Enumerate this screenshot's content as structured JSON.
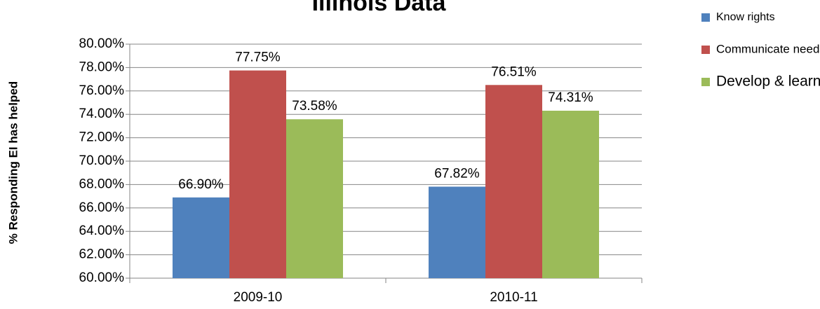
{
  "chart_data": {
    "type": "bar",
    "title": "Illinois Data",
    "y_label": "% Responding EI has helped",
    "categories": [
      "2009-10",
      "2010-11"
    ],
    "series": [
      {
        "name": "Know rights",
        "color": "#4f81bd",
        "values": [
          66.9,
          67.82
        ],
        "value_labels": [
          "66.90%",
          "67.82%"
        ]
      },
      {
        "name": "Communicate needs",
        "color": "#c0504d",
        "values": [
          77.75,
          76.51
        ],
        "value_labels": [
          "77.75%",
          "76.51%"
        ]
      },
      {
        "name": "Develop & learn",
        "color": "#9bbb59",
        "values": [
          73.58,
          74.31
        ],
        "value_labels": [
          "73.58%",
          "74.31%"
        ]
      }
    ],
    "ylim": [
      60,
      80
    ],
    "yticks": [
      {
        "value": 60,
        "label": "60.00%"
      },
      {
        "value": 62,
        "label": "62.00%"
      },
      {
        "value": 64,
        "label": "64.00%"
      },
      {
        "value": 66,
        "label": "66.00%"
      },
      {
        "value": 68,
        "label": "68.00%"
      },
      {
        "value": 70,
        "label": "70.00%"
      },
      {
        "value": 72,
        "label": "72.00%"
      },
      {
        "value": 74,
        "label": "74.00%"
      },
      {
        "value": 76,
        "label": "76.00%"
      },
      {
        "value": 78,
        "label": "78.00%"
      },
      {
        "value": 80,
        "label": "80.00%"
      }
    ],
    "grid": true,
    "legend": "right"
  }
}
